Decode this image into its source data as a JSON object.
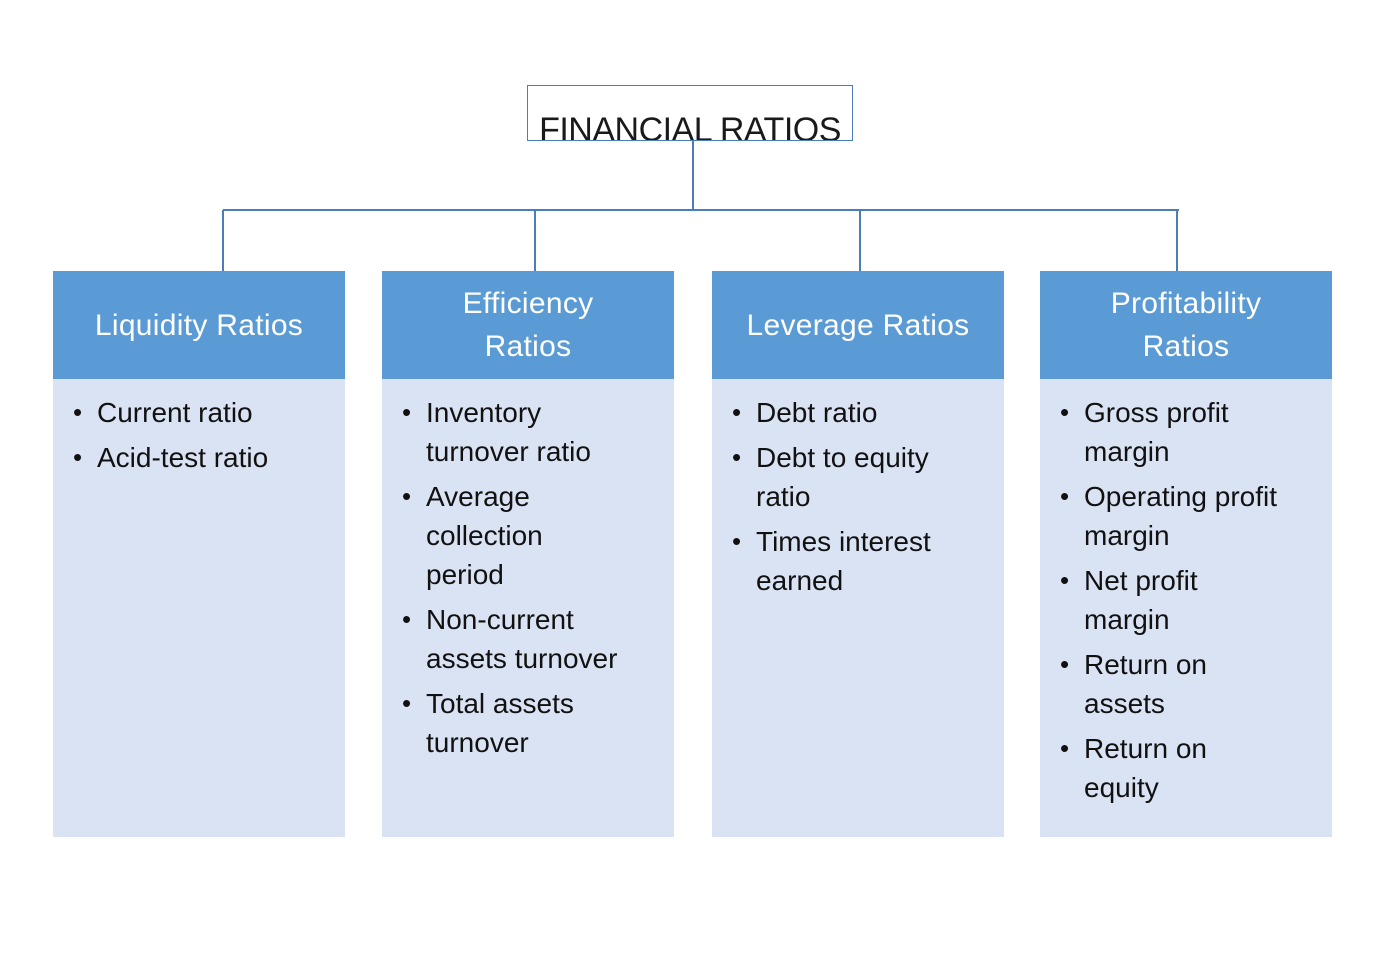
{
  "diagram": {
    "root": {
      "label": "FINANCIAL RATIOS"
    },
    "categories": [
      {
        "title": "Liquidity Ratios",
        "items": [
          "Current ratio",
          "Acid-test ratio"
        ]
      },
      {
        "title": "Efficiency Ratios",
        "items": [
          "Inventory turnover ratio",
          "Average collection period",
          "Non-current assets turnover",
          "Total assets turnover"
        ]
      },
      {
        "title": "Leverage Ratios",
        "items": [
          "Debt ratio",
          "Debt to equity ratio",
          "Times interest earned"
        ]
      },
      {
        "title": "Profitability Ratios",
        "items": [
          "Gross profit margin",
          "Operating profit margin",
          "Net profit margin",
          "Return on assets",
          "Return on equity"
        ]
      }
    ],
    "colors": {
      "header_fill": "#5b9bd5",
      "body_fill": "#dae3f3",
      "connector": "#4a7ebb"
    }
  }
}
